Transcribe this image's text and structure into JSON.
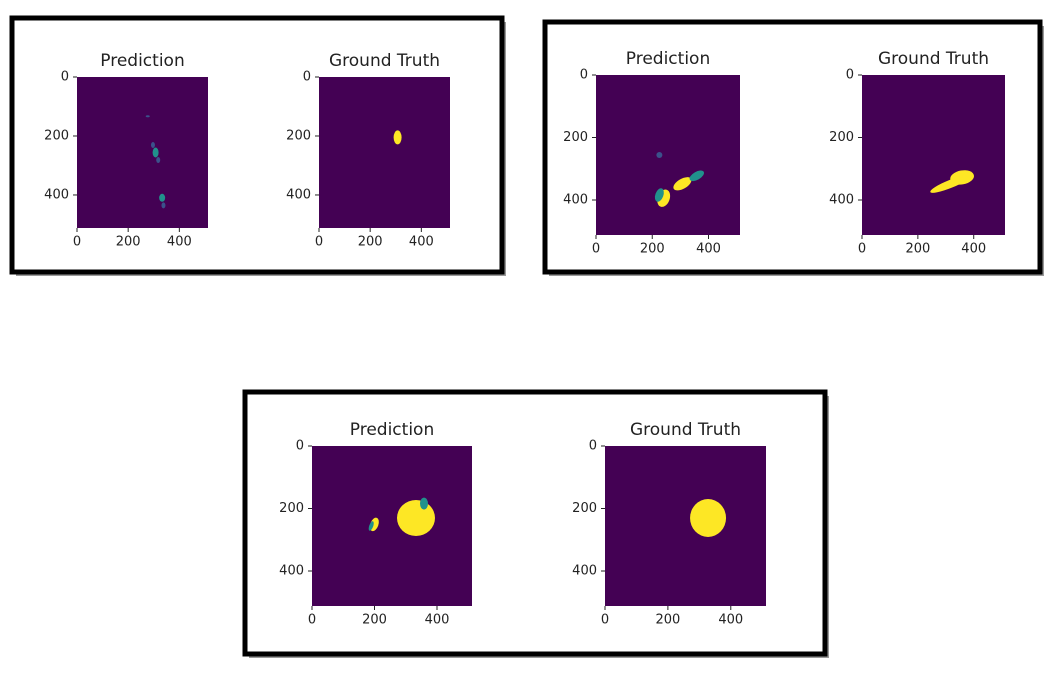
{
  "panels": [
    {
      "plots": [
        {
          "title": "Prediction",
          "xlim": [
            0,
            512
          ],
          "ylim": [
            512,
            0
          ],
          "xticks": [
            0,
            200,
            400
          ],
          "yticks": [
            0,
            200,
            400
          ]
        },
        {
          "title": "Ground Truth",
          "xlim": [
            0,
            512
          ],
          "ylim": [
            512,
            0
          ],
          "xticks": [
            0,
            200,
            400
          ],
          "yticks": [
            0,
            200,
            400
          ]
        }
      ]
    },
    {
      "plots": [
        {
          "title": "Prediction",
          "xlim": [
            0,
            512
          ],
          "ylim": [
            512,
            0
          ],
          "xticks": [
            0,
            200,
            400
          ],
          "yticks": [
            0,
            200,
            400
          ]
        },
        {
          "title": "Ground Truth",
          "xlim": [
            0,
            512
          ],
          "ylim": [
            512,
            0
          ],
          "xticks": [
            0,
            200,
            400
          ],
          "yticks": [
            0,
            200,
            400
          ]
        }
      ]
    },
    {
      "plots": [
        {
          "title": "Prediction",
          "xlim": [
            0,
            512
          ],
          "ylim": [
            512,
            0
          ],
          "xticks": [
            0,
            200,
            400
          ],
          "yticks": [
            0,
            200,
            400
          ]
        },
        {
          "title": "Ground Truth",
          "xlim": [
            0,
            512
          ],
          "ylim": [
            512,
            0
          ],
          "xticks": [
            0,
            200,
            400
          ],
          "yticks": [
            0,
            200,
            400
          ]
        }
      ]
    }
  ]
}
